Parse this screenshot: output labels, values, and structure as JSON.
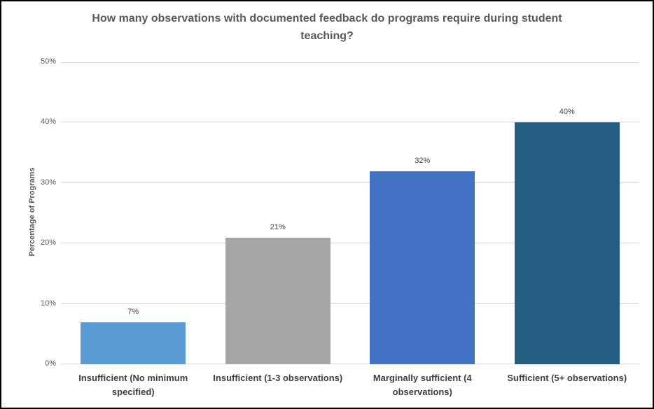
{
  "chart_data": {
    "type": "bar",
    "title": "How many observations with documented feedback do programs require during student teaching?",
    "categories": [
      "Insufficient (No minimum specified)",
      "Insufficient (1-3 observations)",
      "Marginally sufficient (4 observations)",
      "Sufficient (5+ observations)"
    ],
    "values": [
      7,
      21,
      32,
      40
    ],
    "data_labels": [
      "7%",
      "21%",
      "32%",
      "40%"
    ],
    "bar_colors": [
      "#5B9BD5",
      "#A6A6A6",
      "#4472C4",
      "#255E83"
    ],
    "xlabel": "",
    "ylabel": "Percentage of Programs",
    "ylim": [
      0,
      50
    ],
    "ytick_interval": 10,
    "ytick_labels": [
      "0%",
      "10%",
      "20%",
      "30%",
      "40%",
      "50%"
    ],
    "grid": true,
    "legend": false,
    "colors": {
      "grid": "#D9D9D9",
      "title_text": "#595959",
      "tick_text": "#595959",
      "label_text": "#404040",
      "border": "#000000",
      "background": "#FFFFFF"
    }
  }
}
